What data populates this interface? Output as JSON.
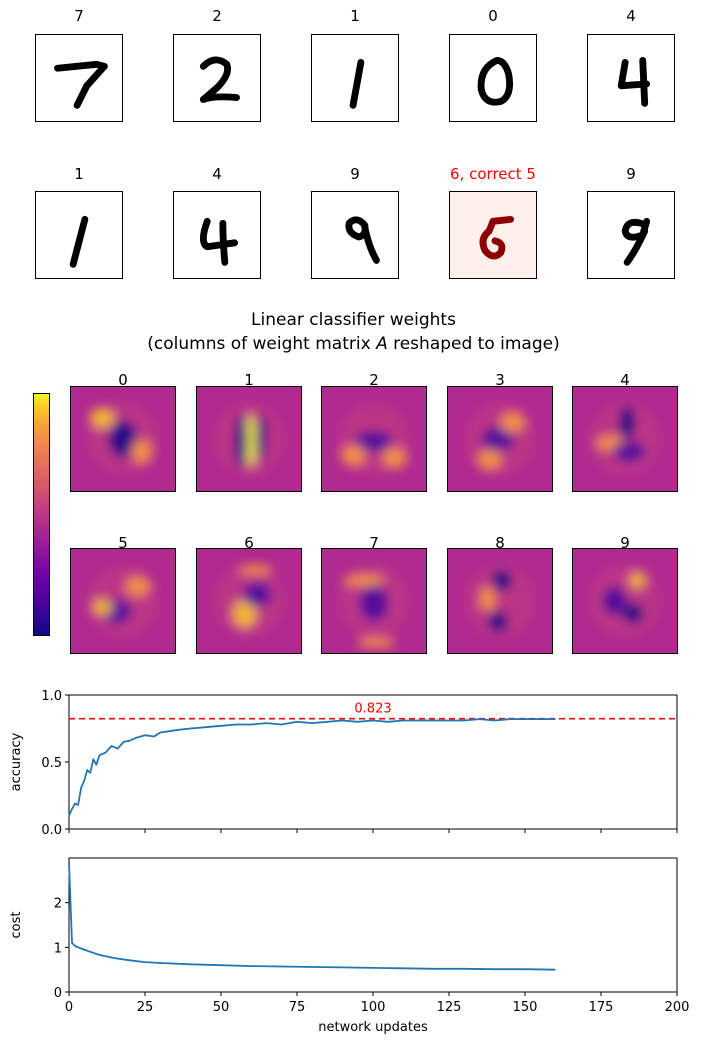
{
  "predictions": {
    "row1": [
      {
        "label": "7",
        "correct": true,
        "shape": "seven"
      },
      {
        "label": "2",
        "correct": true,
        "shape": "two"
      },
      {
        "label": "1",
        "correct": true,
        "shape": "one"
      },
      {
        "label": "0",
        "correct": true,
        "shape": "zero"
      },
      {
        "label": "4",
        "correct": true,
        "shape": "four"
      }
    ],
    "row2": [
      {
        "label": "1",
        "correct": true,
        "shape": "one-b"
      },
      {
        "label": "4",
        "correct": true,
        "shape": "four-b"
      },
      {
        "label": "9",
        "correct": true,
        "shape": "nine"
      },
      {
        "label": "6, correct 5",
        "correct": false,
        "shape": "five"
      },
      {
        "label": "9",
        "correct": true,
        "shape": "nine-b"
      }
    ]
  },
  "weights": {
    "title_line1": "Linear classifier weights",
    "title_line2_prefix": "(columns of weight matrix ",
    "title_line2_var": "A",
    "title_line2_suffix": " reshaped to image)",
    "labels": [
      "0",
      "1",
      "2",
      "3",
      "4",
      "5",
      "6",
      "7",
      "8",
      "9"
    ],
    "colormap": "plasma"
  },
  "colors": {
    "series": "#1f77b4",
    "reference": "#ff0000",
    "error_label": "#ff0000",
    "error_bg": "#fdf0ea",
    "error_digit": "#8b0000"
  },
  "chart_data": [
    {
      "type": "line",
      "ylabel": "accuracy",
      "xlabel": "",
      "xlim": [
        0,
        200
      ],
      "ylim": [
        0.0,
        1.0
      ],
      "yticks": [
        "0.0",
        "0.5",
        "1.0"
      ],
      "xticks": [
        0,
        25,
        50,
        75,
        100,
        125,
        150,
        175,
        200
      ],
      "show_xtick_labels": false,
      "reference_line": {
        "y": 0.823,
        "label": "0.823",
        "style": "dashed"
      },
      "x": [
        0,
        1,
        2,
        3,
        4,
        5,
        6,
        7,
        8,
        9,
        10,
        12,
        14,
        16,
        18,
        20,
        22,
        25,
        28,
        30,
        33,
        36,
        40,
        45,
        50,
        55,
        60,
        65,
        70,
        75,
        80,
        85,
        90,
        95,
        100,
        105,
        110,
        115,
        120,
        125,
        130,
        135,
        140,
        145,
        150,
        155,
        160
      ],
      "y": [
        0.1,
        0.15,
        0.19,
        0.18,
        0.31,
        0.36,
        0.44,
        0.42,
        0.52,
        0.48,
        0.55,
        0.57,
        0.62,
        0.6,
        0.65,
        0.66,
        0.68,
        0.7,
        0.69,
        0.72,
        0.73,
        0.74,
        0.75,
        0.76,
        0.77,
        0.78,
        0.78,
        0.79,
        0.78,
        0.8,
        0.79,
        0.8,
        0.81,
        0.8,
        0.81,
        0.8,
        0.81,
        0.81,
        0.81,
        0.81,
        0.81,
        0.82,
        0.81,
        0.82,
        0.82,
        0.82,
        0.82
      ]
    },
    {
      "type": "line",
      "ylabel": "cost",
      "xlabel": "network updates",
      "xlim": [
        0,
        200
      ],
      "ylim": [
        0,
        3
      ],
      "yticks": [
        "0",
        "1",
        "2"
      ],
      "xticks": [
        0,
        25,
        50,
        75,
        100,
        125,
        150,
        175,
        200
      ],
      "show_xtick_labels": true,
      "x": [
        0,
        1,
        2,
        3,
        5,
        7,
        10,
        15,
        20,
        25,
        30,
        40,
        50,
        60,
        70,
        80,
        90,
        100,
        110,
        120,
        130,
        140,
        150,
        160
      ],
      "y": [
        2.9,
        1.1,
        1.03,
        1.0,
        0.95,
        0.9,
        0.83,
        0.76,
        0.71,
        0.67,
        0.65,
        0.62,
        0.6,
        0.58,
        0.57,
        0.56,
        0.55,
        0.54,
        0.53,
        0.52,
        0.52,
        0.51,
        0.51,
        0.5
      ]
    }
  ]
}
